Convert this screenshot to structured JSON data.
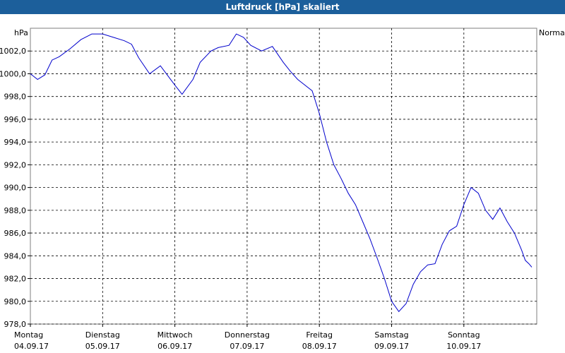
{
  "window": {
    "title": "Luftdruck [hPa] skaliert"
  },
  "chart_data": {
    "type": "line",
    "title": "Luftdruck [hPa] skaliert",
    "ylabel": "hPa",
    "right_label": "Normal",
    "ylim": [
      978.0,
      1004.0
    ],
    "y_ticks": [
      "1002,0",
      "1000,0",
      "998,0",
      "996,0",
      "994,0",
      "992,0",
      "990,0",
      "988,0",
      "986,0",
      "984,0",
      "982,0",
      "980,0",
      "978,0"
    ],
    "y_tick_values": [
      1002,
      1000,
      998,
      996,
      994,
      992,
      990,
      988,
      986,
      984,
      982,
      980,
      978
    ],
    "x_ticks": [
      {
        "day": "Montag",
        "date": "04.09.17"
      },
      {
        "day": "Dienstag",
        "date": "05.09.17"
      },
      {
        "day": "Mittwoch",
        "date": "06.09.17"
      },
      {
        "day": "Donnerstag",
        "date": "07.09.17"
      },
      {
        "day": "Freitag",
        "date": "08.09.17"
      },
      {
        "day": "Samstag",
        "date": "09.09.17"
      },
      {
        "day": "Sonntag",
        "date": "10.09.17"
      }
    ],
    "xlim_days": [
      0,
      6.94
    ],
    "grid": true,
    "line_color": "#0000cc",
    "series": [
      {
        "x": [
          0,
          0.1,
          0.2,
          0.3,
          0.4,
          0.55,
          0.7,
          0.85,
          1.0,
          1.15,
          1.3,
          1.4,
          1.5,
          1.65,
          1.8,
          2.0,
          2.1,
          2.25,
          2.35,
          2.5,
          2.6,
          2.75,
          2.85,
          2.95,
          3.05,
          3.2,
          3.35,
          3.5,
          3.6,
          3.7,
          3.9,
          4.0,
          4.1,
          4.2,
          4.3,
          4.4,
          4.5,
          4.6,
          4.7,
          4.8,
          4.9,
          5.0,
          5.1,
          5.2,
          5.3,
          5.4,
          5.5,
          5.6,
          5.7,
          5.8,
          5.9,
          6.0,
          6.1,
          6.2,
          6.3,
          6.4,
          6.5,
          6.6,
          6.7,
          6.8,
          6.85,
          6.9,
          6.94
        ],
        "y": [
          1000.0,
          999.5,
          999.9,
          1001.2,
          1001.5,
          1002.2,
          1003.0,
          1003.5,
          1003.5,
          1003.2,
          1002.9,
          1002.6,
          1001.4,
          1000.0,
          1000.7,
          999.0,
          998.2,
          999.5,
          1001.0,
          1002.0,
          1002.3,
          1002.5,
          1003.5,
          1003.2,
          1002.5,
          1002.0,
          1002.4,
          1001.0,
          1000.2,
          999.5,
          998.5,
          996.5,
          994.0,
          992.0,
          990.8,
          989.5,
          988.5,
          987.0,
          985.5,
          983.8,
          982.0,
          980.0,
          979.1,
          979.8,
          981.5,
          982.6,
          983.2,
          983.3,
          985.0,
          986.2,
          986.6,
          988.5,
          990.0,
          989.5,
          988.0,
          987.2,
          988.2,
          987.0,
          986.0,
          984.5,
          983.6,
          983.3,
          983.0
        ]
      }
    ]
  }
}
